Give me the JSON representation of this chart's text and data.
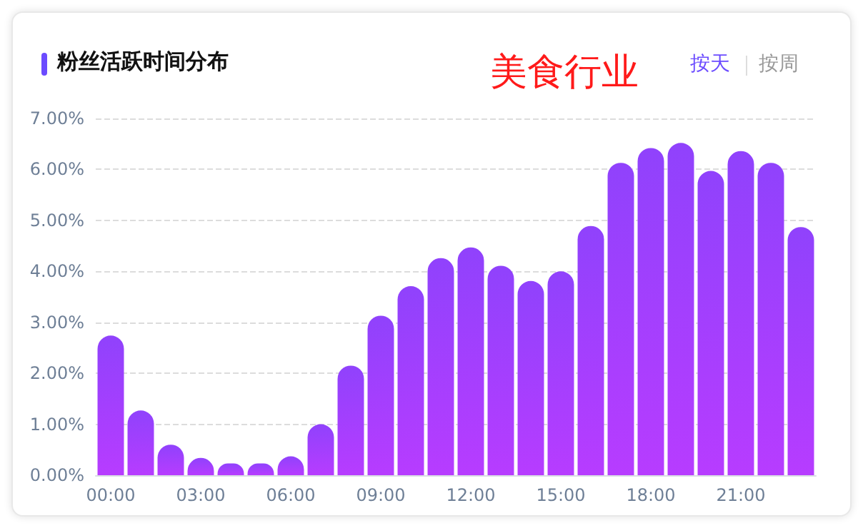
{
  "chart_data": {
    "type": "bar",
    "title": "粉丝活跃时间分布",
    "annotations": [
      "美食行业",
      "按天",
      "按周"
    ],
    "categories": [
      "00:00",
      null,
      null,
      "03:00",
      null,
      null,
      "06:00",
      null,
      null,
      "09:00",
      null,
      null,
      "12:00",
      null,
      null,
      "15:00",
      null,
      null,
      "18:00",
      null,
      null,
      "21:00",
      null,
      null
    ],
    "values": [
      2.74,
      1.27,
      0.6,
      0.34,
      0.23,
      0.23,
      0.37,
      1.0,
      2.15,
      3.13,
      3.71,
      4.26,
      4.47,
      4.11,
      3.81,
      4.0,
      4.89,
      6.13,
      6.42,
      6.52,
      5.97,
      6.36,
      6.13,
      4.87
    ],
    "color": "#9042fc",
    "ylim": [
      0,
      7
    ],
    "yticks": [
      {
        "value": 0,
        "label": "0.00%"
      },
      {
        "value": 1,
        "label": "1.00%"
      },
      {
        "value": 2,
        "label": "2.00%"
      },
      {
        "value": 3,
        "label": "3.00%"
      },
      {
        "value": 4,
        "label": "4.00%"
      },
      {
        "value": 5,
        "label": "5.00%"
      },
      {
        "value": 6,
        "label": "6.00%"
      },
      {
        "value": 7,
        "label": "7.00%"
      }
    ],
    "grid": "y"
  }
}
